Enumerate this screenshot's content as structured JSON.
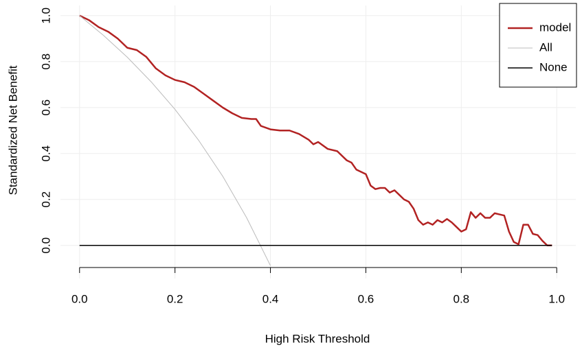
{
  "chart_data": {
    "type": "line",
    "xlabel": "High Risk Threshold",
    "ylabel": "Standardized Net Benefit",
    "xlim": [
      -0.04,
      1.04
    ],
    "ylim": [
      -0.144,
      1.044
    ],
    "xticks": [
      {
        "value": 0,
        "label": "0.0"
      },
      0.2,
      0.4,
      0.6,
      0.8,
      {
        "value": 1,
        "label": "1.0"
      }
    ],
    "yticks": [
      {
        "value": 0,
        "label": "0.0"
      },
      0.2,
      0.4,
      0.6,
      0.8,
      {
        "value": 1,
        "label": "1.0"
      }
    ],
    "grid": true,
    "legend": "topright",
    "series": [
      {
        "name": "model",
        "color": "#b22222",
        "x": [
          0,
          0.02,
          0.04,
          0.06,
          0.08,
          0.1,
          0.12,
          0.14,
          0.16,
          0.18,
          0.2,
          0.22,
          0.24,
          0.26,
          0.28,
          0.3,
          0.32,
          0.34,
          0.36,
          0.37,
          0.38,
          0.4,
          0.42,
          0.44,
          0.46,
          0.48,
          0.49,
          0.5,
          0.52,
          0.54,
          0.56,
          0.57,
          0.58,
          0.6,
          0.61,
          0.62,
          0.63,
          0.64,
          0.65,
          0.66,
          0.67,
          0.68,
          0.69,
          0.7,
          0.71,
          0.72,
          0.73,
          0.74,
          0.75,
          0.76,
          0.77,
          0.78,
          0.79,
          0.8,
          0.81,
          0.82,
          0.83,
          0.84,
          0.85,
          0.86,
          0.87,
          0.88,
          0.89,
          0.9,
          0.91,
          0.92,
          0.93,
          0.94,
          0.95,
          0.96,
          0.97,
          0.98,
          0.99
        ],
        "values": [
          1,
          0.98,
          0.95,
          0.93,
          0.9,
          0.86,
          0.85,
          0.82,
          0.77,
          0.74,
          0.72,
          0.71,
          0.69,
          0.66,
          0.63,
          0.6,
          0.575,
          0.555,
          0.55,
          0.55,
          0.52,
          0.505,
          0.5,
          0.5,
          0.485,
          0.46,
          0.44,
          0.45,
          0.42,
          0.41,
          0.37,
          0.36,
          0.33,
          0.31,
          0.26,
          0.245,
          0.25,
          0.25,
          0.23,
          0.24,
          0.22,
          0.2,
          0.19,
          0.16,
          0.11,
          0.09,
          0.1,
          0.09,
          0.11,
          0.1,
          0.115,
          0.1,
          0.08,
          0.06,
          0.07,
          0.145,
          0.12,
          0.14,
          0.12,
          0.12,
          0.14,
          0.135,
          0.13,
          0.06,
          0.015,
          0.005,
          0.09,
          0.09,
          0.05,
          0.045,
          0.02,
          0,
          0
        ]
      },
      {
        "name": "All",
        "color": "#bbbbbb",
        "x": [
          0,
          0.05,
          0.1,
          0.15,
          0.2,
          0.25,
          0.3,
          0.35,
          0.4
        ],
        "values": [
          1,
          0.914,
          0.819,
          0.712,
          0.592,
          0.456,
          0.301,
          0.121,
          -0.088
        ]
      },
      {
        "name": "None",
        "color": "#000000",
        "x": [
          0,
          0.99
        ],
        "values": [
          0,
          0
        ]
      }
    ]
  }
}
